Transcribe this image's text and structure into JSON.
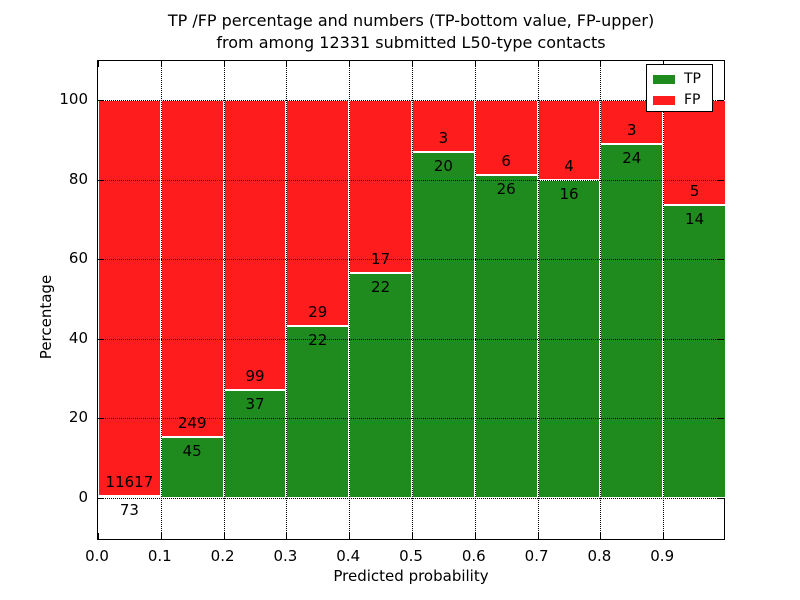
{
  "figure": {
    "title_line1": "TP /FP percentage and numbers (TP-bottom value, FP-upper)",
    "title_line2": "from among 12331 submitted L50-type contacts",
    "background_color": "#ffffff"
  },
  "chart_data": {
    "type": "bar",
    "stacked": true,
    "normalized_to_percent": true,
    "title": "TP /FP percentage and numbers (TP-bottom value, FP-upper) from among 12331 submitted L50-type contacts",
    "xlabel": "Predicted probability",
    "ylabel": "Percentage",
    "total_contacts": 12331,
    "bin_edges": [
      0.0,
      0.1,
      0.2,
      0.3,
      0.4,
      0.5,
      0.6,
      0.7,
      0.8,
      0.9,
      1.0
    ],
    "categories": [
      "0.0-0.1",
      "0.1-0.2",
      "0.2-0.3",
      "0.3-0.4",
      "0.4-0.5",
      "0.5-0.6",
      "0.6-0.7",
      "0.7-0.8",
      "0.8-0.9",
      "0.9-1.0"
    ],
    "series": [
      {
        "name": "TP",
        "color": "#1f8b1f",
        "counts": [
          73,
          45,
          37,
          22,
          22,
          20,
          26,
          16,
          24,
          14
        ]
      },
      {
        "name": "FP",
        "color": "#ff1c1c",
        "counts": [
          11617,
          249,
          99,
          29,
          17,
          3,
          6,
          4,
          3,
          5
        ]
      }
    ],
    "tp_percent_of_bin": [
      0.6,
      15.3,
      27.2,
      43.1,
      56.4,
      87.0,
      81.3,
      80.0,
      88.9,
      73.7
    ],
    "x_ticks": [
      "0.0",
      "0.1",
      "0.2",
      "0.3",
      "0.4",
      "0.5",
      "0.6",
      "0.7",
      "0.8",
      "0.9"
    ],
    "y_ticks": [
      0,
      20,
      40,
      60,
      80,
      100
    ],
    "xlim": [
      0.0,
      1.0
    ],
    "ylim": [
      -11,
      110
    ],
    "grid": "dotted",
    "grid_color": "#000000",
    "bar_edge_color": "#ffffff",
    "legend_position": "upper right"
  },
  "legend": {
    "items": [
      {
        "label": "TP",
        "color": "#1f8b1f"
      },
      {
        "label": "FP",
        "color": "#ff1c1c"
      }
    ]
  }
}
